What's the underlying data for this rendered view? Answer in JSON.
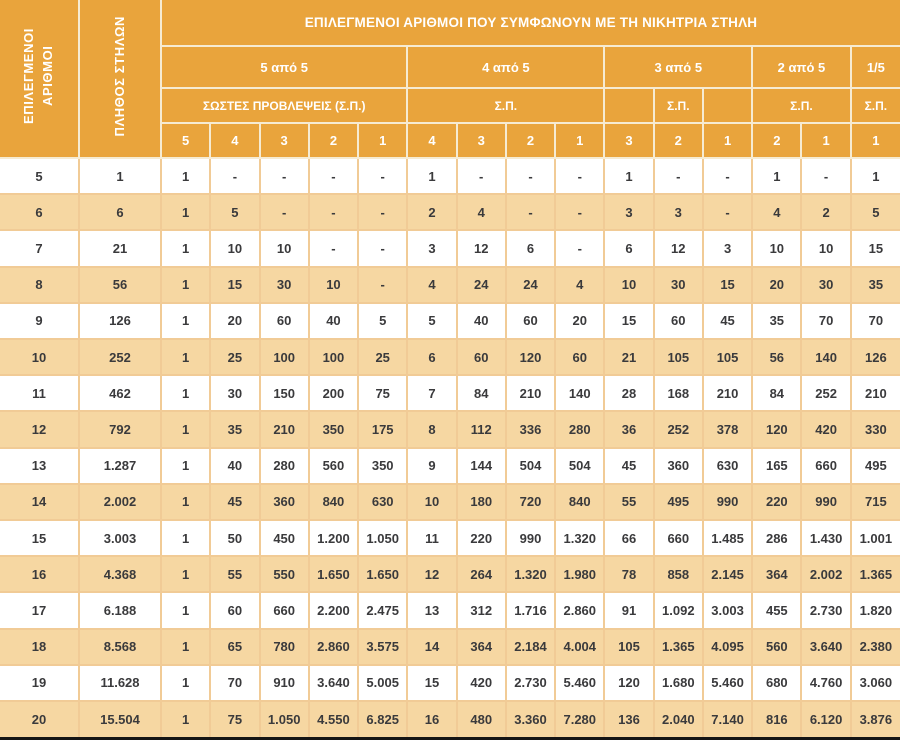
{
  "table": {
    "title": "ΕΠΙΛΕΓΜΕΝΟΙ ΑΡΙΘΜΟΙ ΠΟΥ ΣΥΜΦΩΝΟΥΝ ΜΕ ΤΗ ΝΙΚΗΤΡΙΑ ΣΤΗΛΗ",
    "row_headers": {
      "selected_numbers": "ΕΠΙΛΕΓΜΕΝΟΙ\nΑΡΙΘΜΟΙ",
      "column_count": "ΠΛΗΘΟΣ ΣΤΗΛΩΝ"
    },
    "groups": [
      {
        "label": "5 από 5",
        "sp_cells": [
          {
            "label": "ΣΩΣΤΕΣ ΠΡΟΒΛΕΨΕΙΣ (Σ.Π.)",
            "span": 5
          }
        ],
        "sub": [
          "5",
          "4",
          "3",
          "2",
          "1"
        ]
      },
      {
        "label": "4 από 5",
        "sp_cells": [
          {
            "label": "Σ.Π.",
            "span": 4
          }
        ],
        "sub": [
          "4",
          "3",
          "2",
          "1"
        ]
      },
      {
        "label": "3 από 5",
        "sp_cells": [
          {
            "label": "",
            "span": 1
          },
          {
            "label": "Σ.Π.",
            "span": 1
          },
          {
            "label": "",
            "span": 1
          }
        ],
        "sub": [
          "3",
          "2",
          "1"
        ]
      },
      {
        "label": "2 από 5",
        "sp_cells": [
          {
            "label": "Σ.Π.",
            "span": 2
          }
        ],
        "sub": [
          "2",
          "1"
        ]
      },
      {
        "label": "1/5",
        "sp_cells": [
          {
            "label": "Σ.Π.",
            "span": 1
          }
        ],
        "sub": [
          "1"
        ]
      }
    ],
    "rows": [
      [
        "5",
        "1",
        "1",
        "-",
        "-",
        "-",
        "-",
        "1",
        "-",
        "-",
        "-",
        "1",
        "-",
        "-",
        "1",
        "-",
        "1"
      ],
      [
        "6",
        "6",
        "1",
        "5",
        "-",
        "-",
        "-",
        "2",
        "4",
        "-",
        "-",
        "3",
        "3",
        "-",
        "4",
        "2",
        "5"
      ],
      [
        "7",
        "21",
        "1",
        "10",
        "10",
        "-",
        "-",
        "3",
        "12",
        "6",
        "-",
        "6",
        "12",
        "3",
        "10",
        "10",
        "15"
      ],
      [
        "8",
        "56",
        "1",
        "15",
        "30",
        "10",
        "-",
        "4",
        "24",
        "24",
        "4",
        "10",
        "30",
        "15",
        "20",
        "30",
        "35"
      ],
      [
        "9",
        "126",
        "1",
        "20",
        "60",
        "40",
        "5",
        "5",
        "40",
        "60",
        "20",
        "15",
        "60",
        "45",
        "35",
        "70",
        "70"
      ],
      [
        "10",
        "252",
        "1",
        "25",
        "100",
        "100",
        "25",
        "6",
        "60",
        "120",
        "60",
        "21",
        "105",
        "105",
        "56",
        "140",
        "126"
      ],
      [
        "11",
        "462",
        "1",
        "30",
        "150",
        "200",
        "75",
        "7",
        "84",
        "210",
        "140",
        "28",
        "168",
        "210",
        "84",
        "252",
        "210"
      ],
      [
        "12",
        "792",
        "1",
        "35",
        "210",
        "350",
        "175",
        "8",
        "112",
        "336",
        "280",
        "36",
        "252",
        "378",
        "120",
        "420",
        "330"
      ],
      [
        "13",
        "1.287",
        "1",
        "40",
        "280",
        "560",
        "350",
        "9",
        "144",
        "504",
        "504",
        "45",
        "360",
        "630",
        "165",
        "660",
        "495"
      ],
      [
        "14",
        "2.002",
        "1",
        "45",
        "360",
        "840",
        "630",
        "10",
        "180",
        "720",
        "840",
        "55",
        "495",
        "990",
        "220",
        "990",
        "715"
      ],
      [
        "15",
        "3.003",
        "1",
        "50",
        "450",
        "1.200",
        "1.050",
        "11",
        "220",
        "990",
        "1.320",
        "66",
        "660",
        "1.485",
        "286",
        "1.430",
        "1.001"
      ],
      [
        "16",
        "4.368",
        "1",
        "55",
        "550",
        "1.650",
        "1.650",
        "12",
        "264",
        "1.320",
        "1.980",
        "78",
        "858",
        "2.145",
        "364",
        "2.002",
        "1.365"
      ],
      [
        "17",
        "6.188",
        "1",
        "60",
        "660",
        "2.200",
        "2.475",
        "13",
        "312",
        "1.716",
        "2.860",
        "91",
        "1.092",
        "3.003",
        "455",
        "2.730",
        "1.820"
      ],
      [
        "18",
        "8.568",
        "1",
        "65",
        "780",
        "2.860",
        "3.575",
        "14",
        "364",
        "2.184",
        "4.004",
        "105",
        "1.365",
        "4.095",
        "560",
        "3.640",
        "2.380"
      ],
      [
        "19",
        "11.628",
        "1",
        "70",
        "910",
        "3.640",
        "5.005",
        "15",
        "420",
        "2.730",
        "5.460",
        "120",
        "1.680",
        "5.460",
        "680",
        "4.760",
        "3.060"
      ],
      [
        "20",
        "15.504",
        "1",
        "75",
        "1.050",
        "4.550",
        "6.825",
        "16",
        "480",
        "3.360",
        "7.280",
        "136",
        "2.040",
        "7.140",
        "816",
        "6.120",
        "3.876"
      ]
    ]
  },
  "colors": {
    "header_bg": "#E9A43C",
    "header_text": "#FFFFFF",
    "header_divider": "#F6EBD2",
    "stripe_bg": "#F6D7A2",
    "white_row_bg": "#FFFFFF",
    "cell_border": "#F1CB96",
    "cell_text": "#3A3A3C",
    "bottom_border": "#151515"
  }
}
